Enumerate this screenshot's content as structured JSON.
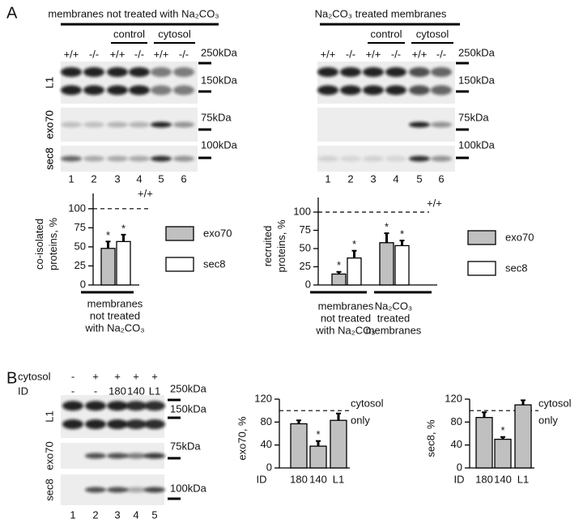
{
  "panels": [
    "A",
    "B"
  ],
  "blots": [
    {
      "header": "membranes not treated with Na₂CO₃",
      "conditions": [
        "control",
        "cytosol"
      ],
      "genotypes": [
        "+/+",
        "-/-",
        "+/+",
        "-/-",
        "+/+",
        "-/-"
      ],
      "rows": [
        "L1",
        "exo70",
        "sec8"
      ],
      "markers": [
        "250kDa",
        "150kDa",
        "75kDa",
        "100kDa"
      ],
      "lanes": [
        "1",
        "2",
        "3",
        "4",
        "5",
        "6"
      ]
    },
    {
      "header": "Na₂CO₃ treated membranes",
      "conditions": [
        "control",
        "cytosol"
      ],
      "genotypes": [
        "+/+",
        "-/-",
        "+/+",
        "-/-",
        "+/+",
        "-/-"
      ],
      "rows": [
        "L1",
        "exo70",
        "sec8"
      ],
      "markers": [
        "250kDa",
        "150kDa",
        "75kDa",
        "100kDa"
      ],
      "lanes": [
        "1",
        "2",
        "3",
        "4",
        "5",
        "6"
      ]
    },
    {
      "treatments": [
        {
          "label": "cytosol",
          "values": [
            "-",
            "+",
            "+",
            "+",
            "+"
          ]
        },
        {
          "label": "ID",
          "values": [
            "-",
            "-",
            "180",
            "140",
            "L1"
          ]
        }
      ],
      "rows": [
        "L1",
        "exo70",
        "sec8"
      ],
      "markers": [
        "250kDa",
        "150kDa",
        "75kDa",
        "100kDa"
      ],
      "lanes": [
        "1",
        "2",
        "3",
        "4",
        "5"
      ]
    }
  ],
  "chart_data": [
    {
      "type": "bar",
      "ylabel": [
        "co-isolated",
        "proteins, %"
      ],
      "categories": [
        [
          "membranes",
          "not   treated",
          "with Na₂CO₃"
        ]
      ],
      "series": [
        {
          "name": "exo70",
          "color": "#c0c0c0",
          "values": [
            48
          ],
          "errors": [
            9
          ],
          "significance": [
            "*"
          ]
        },
        {
          "name": "sec8",
          "color": "#ffffff",
          "values": [
            57
          ],
          "errors": [
            9
          ],
          "significance": [
            "*"
          ]
        }
      ],
      "ylim": [
        0,
        120
      ],
      "yticks": [
        0,
        25,
        50,
        75,
        100
      ],
      "reference_line": {
        "value": 100,
        "label": [
          "+/+"
        ]
      }
    },
    {
      "type": "bar",
      "ylabel": [
        "recruited",
        "proteins, %"
      ],
      "categories": [
        [
          "membranes",
          "not   treated",
          "with Na₂CO₃"
        ],
        [
          "Na₂CO₃",
          "treated",
          "membranes"
        ]
      ],
      "series": [
        {
          "name": "exo70",
          "color": "#c0c0c0",
          "values": [
            15,
            58
          ],
          "errors": [
            3,
            13
          ],
          "significance": [
            "*",
            "*"
          ]
        },
        {
          "name": "sec8",
          "color": "#ffffff",
          "values": [
            37,
            54
          ],
          "errors": [
            10,
            7
          ],
          "significance": [
            "*",
            "*"
          ]
        }
      ],
      "ylim": [
        0,
        120
      ],
      "yticks": [
        0,
        25,
        50,
        75,
        100
      ],
      "reference_line": {
        "value": 100,
        "label": [
          "+/+"
        ]
      }
    },
    {
      "type": "bar",
      "ylabel": [
        "exo70, %"
      ],
      "xlabel": "ID",
      "categories": [
        "180",
        "140",
        "L1"
      ],
      "series": [
        {
          "color": "#c0c0c0",
          "values": [
            77,
            38,
            83
          ],
          "errors": [
            6,
            9,
            12
          ],
          "significance": [
            null,
            "*",
            null
          ]
        }
      ],
      "ylim": [
        0,
        120
      ],
      "yticks": [
        0,
        40,
        80,
        120
      ],
      "reference_line": {
        "value": 100,
        "label": [
          "cytosol",
          "only"
        ]
      }
    },
    {
      "type": "bar",
      "ylabel": [
        "sec8, %"
      ],
      "xlabel": "ID",
      "categories": [
        "180",
        "140",
        "L1"
      ],
      "series": [
        {
          "color": "#c0c0c0",
          "values": [
            88,
            50,
            110
          ],
          "errors": [
            9,
            4,
            8
          ],
          "significance": [
            null,
            "*",
            null
          ]
        }
      ],
      "ylim": [
        0,
        120
      ],
      "yticks": [
        0,
        40,
        80,
        120
      ],
      "reference_line": {
        "value": 100,
        "label": [
          "cytosol",
          "only"
        ]
      }
    }
  ]
}
